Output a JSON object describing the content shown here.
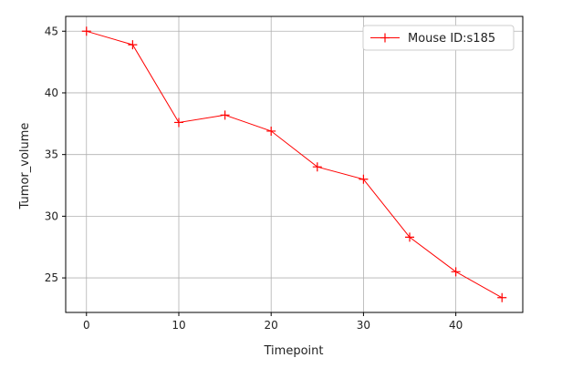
{
  "chart_data": {
    "type": "line",
    "title": "",
    "xlabel": "Timepoint",
    "ylabel": "Tumor_volume",
    "xlim": [
      -2.25,
      47.25
    ],
    "ylim": [
      22.2,
      46.2
    ],
    "xticks": [
      0,
      10,
      20,
      30,
      40
    ],
    "yticks": [
      25,
      30,
      35,
      40,
      45
    ],
    "grid": true,
    "legend_position": "top-right",
    "series": [
      {
        "name": "Mouse ID:s185",
        "color": "#ff0000",
        "marker": "plus",
        "x": [
          0,
          5,
          10,
          15,
          20,
          25,
          30,
          35,
          40,
          45
        ],
        "y": [
          45.0,
          43.9,
          37.6,
          38.2,
          36.9,
          34.0,
          33.0,
          28.3,
          25.5,
          23.4
        ]
      }
    ]
  }
}
